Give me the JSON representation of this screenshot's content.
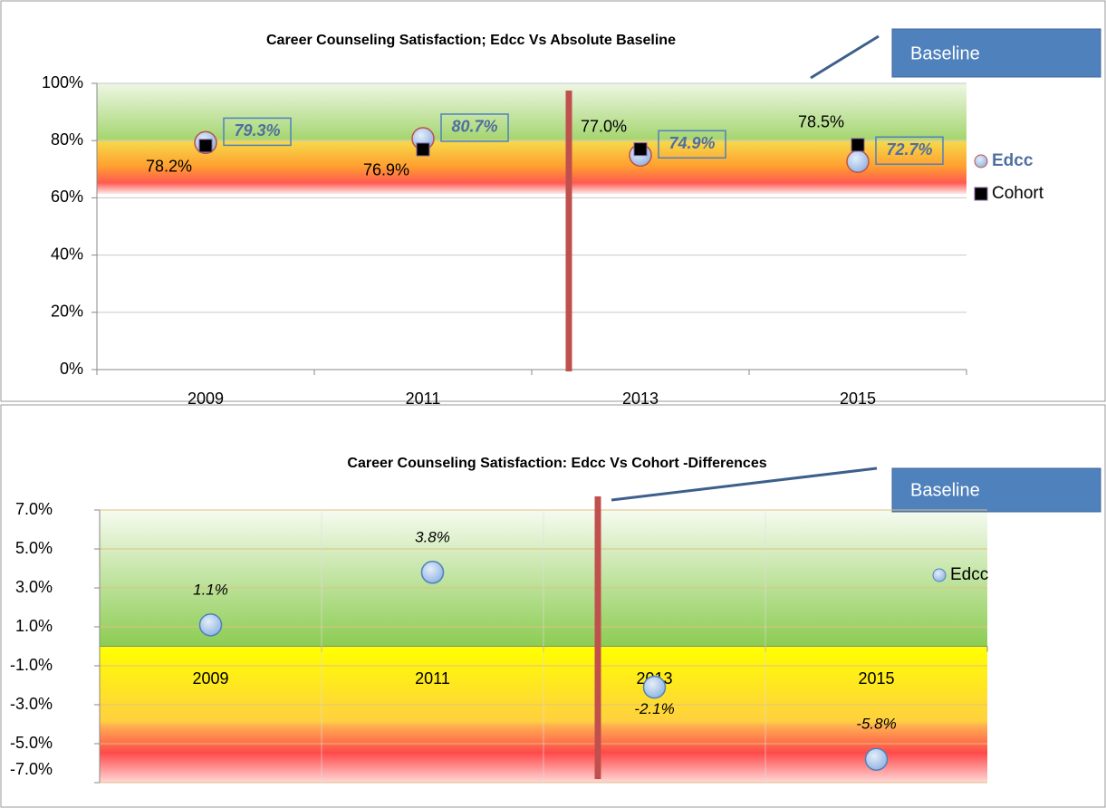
{
  "chart_data": [
    {
      "type": "scatter",
      "title": "Career Counseling Satisfaction; Edcc Vs Absolute Baseline",
      "annotation": "Baseline",
      "categories": [
        "2009",
        "2011",
        "2013",
        "2015"
      ],
      "series": [
        {
          "name": "Edcc",
          "color": "#4f81bd",
          "values": [
            79.3,
            80.7,
            74.9,
            72.7
          ],
          "value_labels": [
            "79.3%",
            "80.7%",
            "74.9%",
            "72.7%"
          ]
        },
        {
          "name": "Cohort",
          "color": "#000000",
          "values": [
            78.2,
            76.9,
            77.0,
            78.5
          ],
          "value_labels": [
            "78.2%",
            "76.9%",
            "77.0%",
            "78.5%"
          ]
        }
      ],
      "ylim": [
        0,
        100
      ],
      "yticks": [
        {
          "value": 0,
          "label": "0%"
        },
        {
          "value": 20,
          "label": "20%"
        },
        {
          "value": 40,
          "label": "40%"
        },
        {
          "value": 60,
          "label": "60%"
        },
        {
          "value": 80,
          "label": "80%"
        },
        {
          "value": 100,
          "label": "100%"
        }
      ],
      "legend": "right"
    },
    {
      "type": "scatter",
      "title": "Career Counseling Satisfaction: Edcc Vs Cohort -Differences",
      "annotation": "Baseline",
      "categories": [
        "2009",
        "2011",
        "2013",
        "2015"
      ],
      "series": [
        {
          "name": "Edcc",
          "color": "#4f81bd",
          "values": [
            1.1,
            3.8,
            -2.1,
            -5.8
          ],
          "value_labels": [
            "1.1%",
            "3.8%",
            "-2.1%",
            "-5.8%"
          ]
        }
      ],
      "ylim": [
        -7,
        7
      ],
      "yticks": [
        {
          "value": -7,
          "label": "-7.0%"
        },
        {
          "value": -5,
          "label": "-5.0%"
        },
        {
          "value": -3,
          "label": "-3.0%"
        },
        {
          "value": -1,
          "label": "-1.0%"
        },
        {
          "value": 1,
          "label": "1.0%"
        },
        {
          "value": 3,
          "label": "3.0%"
        },
        {
          "value": 5,
          "label": "5.0%"
        },
        {
          "value": 7,
          "label": "7.0%"
        }
      ],
      "legend": "right"
    }
  ]
}
